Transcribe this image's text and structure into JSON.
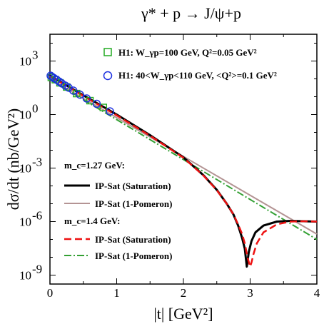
{
  "chart_data": {
    "type": "line",
    "title": "γ* + p → J/ψ+p",
    "xlabel": "|t| [GeV²]",
    "ylabel": "dσ/dt (nb/GeV²)",
    "xlim": [
      0,
      4
    ],
    "ylim_log10": [
      -9.5,
      4.5
    ],
    "y_scale": "log",
    "grid": false,
    "x_ticks": [
      0,
      1,
      2,
      3,
      4
    ],
    "x_tick_labels": [
      "0",
      "1",
      "2",
      "3",
      "4"
    ],
    "y_ticks_log10": [
      -9,
      -6,
      -3,
      0,
      3
    ],
    "data_legend": [
      {
        "name": "H1: W_γp=100 GeV, Q²=0.05 GeV²",
        "marker": "square",
        "color": "#22aa22"
      },
      {
        "name": "H1: 40<W_γp<110 GeV, <Q²>=0.1 GeV²",
        "marker": "circle",
        "color": "#1a2ee0"
      }
    ],
    "group_headings": [
      "m_c=1.27 GeV:",
      "m_c=1.4 GeV:"
    ],
    "series": [
      {
        "name": "IP-Sat (Saturation)",
        "group": "m_c=1.27 GeV:",
        "color": "#000000",
        "style": "solid",
        "x": [
          0,
          0.5,
          1.0,
          1.5,
          2.0,
          2.3,
          2.5,
          2.65,
          2.75,
          2.82,
          2.88,
          2.92,
          2.95,
          2.98,
          3.02,
          3.08,
          3.2,
          3.4,
          3.6,
          3.8,
          4.0
        ],
        "y": [
          150,
          12,
          1.0,
          0.07,
          0.004,
          0.0004,
          6e-05,
          1e-05,
          2.5e-06,
          6e-07,
          1.2e-07,
          3e-08,
          3e-09,
          2e-08,
          8e-08,
          2.5e-07,
          6e-07,
          1e-06,
          1.1e-06,
          1.05e-06,
          1e-06
        ]
      },
      {
        "name": "IP-Sat (1-Pomeron)",
        "group": "m_c=1.27 GeV:",
        "color": "#b49494",
        "style": "solid",
        "x": [
          0,
          4.0
        ],
        "y": [
          100,
          2e-07
        ]
      },
      {
        "name": "IP-Sat (Saturation)",
        "group": "m_c=1.4 GeV:",
        "color": "#ee1111",
        "style": "dashed",
        "x": [
          0,
          0.5,
          1.0,
          1.5,
          2.0,
          2.3,
          2.5,
          2.65,
          2.75,
          2.82,
          2.88,
          2.92,
          2.96,
          3.0,
          3.02,
          3.05,
          3.1,
          3.2,
          3.4,
          3.6,
          3.8,
          4.0
        ],
        "y": [
          140,
          11,
          0.9,
          0.065,
          0.0038,
          0.00038,
          5.8e-05,
          1e-05,
          2.5e-06,
          7e-07,
          2e-07,
          6e-08,
          1e-08,
          3e-09,
          5e-09,
          1.5e-08,
          6e-08,
          2.5e-07,
          7e-07,
          1e-06,
          1.05e-06,
          1e-06
        ]
      },
      {
        "name": "IP-Sat (1-Pomeron)",
        "group": "m_c=1.4 GeV:",
        "color": "#33a033",
        "style": "dashdot",
        "x": [
          0,
          4.0
        ],
        "y": [
          90,
          1e-07
        ]
      }
    ],
    "data_points": {
      "h1_squares": {
        "x": [
          0.02,
          0.08,
          0.15,
          0.25,
          0.4,
          0.6,
          0.8
        ],
        "y": [
          120,
          90,
          60,
          35,
          15,
          6,
          2.5
        ]
      },
      "h1_circles": {
        "x": [
          0.01,
          0.03,
          0.06,
          0.1,
          0.14,
          0.18,
          0.23,
          0.28,
          0.35,
          0.45,
          0.55,
          0.7,
          0.9
        ],
        "y": [
          150,
          130,
          110,
          90,
          70,
          55,
          42,
          32,
          22,
          13,
          8,
          4,
          1.5
        ]
      }
    }
  }
}
